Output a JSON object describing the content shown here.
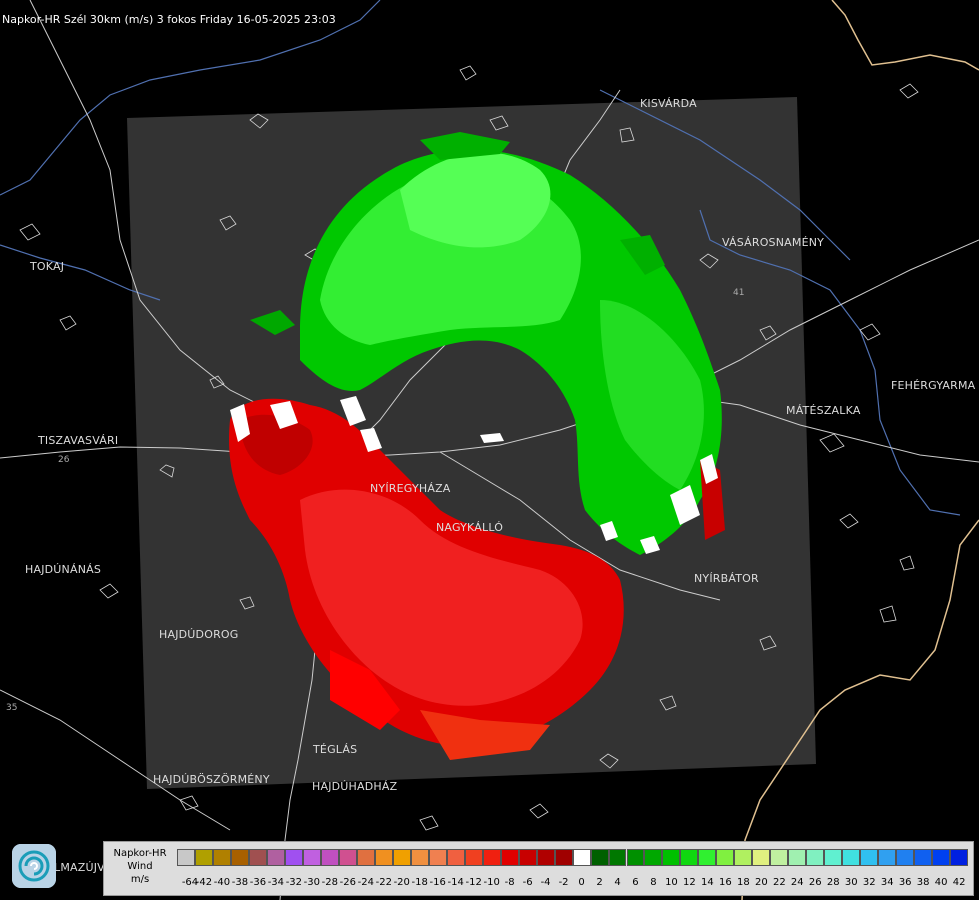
{
  "title": "Napkor-HR Szél 30km (m/s) 3 fokos Friday 16-05-2025 23:03",
  "cities": [
    {
      "id": "kisvarda",
      "name": "KISVÁRDA"
    },
    {
      "id": "tokaj",
      "name": "TOKAJ"
    },
    {
      "id": "vasarosnameny",
      "name": "VÁSÁROSNAMÉNY"
    },
    {
      "id": "fehergyarmat",
      "name": "FEHÉRGYARMA"
    },
    {
      "id": "mateszalka",
      "name": "MÁTÉSZALKA"
    },
    {
      "id": "tiszavasvari",
      "name": "TISZAVASVÁRI"
    },
    {
      "id": "nyiregyhaza",
      "name": "NYÍREGYHÁZA"
    },
    {
      "id": "nagykallo",
      "name": "NAGYKÁLLÓ"
    },
    {
      "id": "nyirbator",
      "name": "NYÍRBÁTOR"
    },
    {
      "id": "hajdunanas",
      "name": "HAJDÚNÁNÁS"
    },
    {
      "id": "hajdudorog",
      "name": "HAJDÚDOROG"
    },
    {
      "id": "teglas",
      "name": "TÉGLÁS"
    },
    {
      "id": "hajduboszormeny",
      "name": "HAJDÚBÖSZÖRMÉNY"
    },
    {
      "id": "hajduhadhaz",
      "name": "HAJDÚHADHÁZ"
    },
    {
      "id": "hajdusamson",
      "name": "LMAZÚJVÁR"
    }
  ],
  "roads": [
    "26",
    "41",
    "35"
  ],
  "legend": {
    "label_lines": [
      "Napkor-HR",
      "Wind",
      "m/s"
    ],
    "bins": [
      {
        "label": "-64",
        "color": "#c8c8c8"
      },
      {
        "label": "-42",
        "color": "#b0a000"
      },
      {
        "label": "-40",
        "color": "#b08000"
      },
      {
        "label": "-38",
        "color": "#a86000"
      },
      {
        "label": "-36",
        "color": "#a05050"
      },
      {
        "label": "-34",
        "color": "#b060a0"
      },
      {
        "label": "-32",
        "color": "#a050f0"
      },
      {
        "label": "-30",
        "color": "#c060e0"
      },
      {
        "label": "-28",
        "color": "#c050c0"
      },
      {
        "label": "-26",
        "color": "#d05090"
      },
      {
        "label": "-24",
        "color": "#e07040"
      },
      {
        "label": "-22",
        "color": "#f09020"
      },
      {
        "label": "-20",
        "color": "#f0a000"
      },
      {
        "label": "-18",
        "color": "#f09040"
      },
      {
        "label": "-16",
        "color": "#f08050"
      },
      {
        "label": "-14",
        "color": "#f06040"
      },
      {
        "label": "-12",
        "color": "#f04020"
      },
      {
        "label": "-10",
        "color": "#f02010"
      },
      {
        "label": "-8",
        "color": "#e00000"
      },
      {
        "label": "-6",
        "color": "#c80000"
      },
      {
        "label": "-4",
        "color": "#b00000"
      },
      {
        "label": "-2",
        "color": "#a00000"
      },
      {
        "label": "0",
        "color": "#ffffff"
      },
      {
        "label": "2",
        "color": "#006000"
      },
      {
        "label": "4",
        "color": "#007800"
      },
      {
        "label": "6",
        "color": "#009000"
      },
      {
        "label": "8",
        "color": "#00a800"
      },
      {
        "label": "10",
        "color": "#00c000"
      },
      {
        "label": "12",
        "color": "#10d810"
      },
      {
        "label": "14",
        "color": "#30f030"
      },
      {
        "label": "16",
        "color": "#80f040"
      },
      {
        "label": "18",
        "color": "#b0f060"
      },
      {
        "label": "20",
        "color": "#e0f080"
      },
      {
        "label": "22",
        "color": "#c0f0a0"
      },
      {
        "label": "24",
        "color": "#a0f0b0"
      },
      {
        "label": "26",
        "color": "#80f0c0"
      },
      {
        "label": "28",
        "color": "#60f0d0"
      },
      {
        "label": "30",
        "color": "#40e0e0"
      },
      {
        "label": "32",
        "color": "#30c0f0"
      },
      {
        "label": "34",
        "color": "#30a0f0"
      },
      {
        "label": "36",
        "color": "#2080f0"
      },
      {
        "label": "38",
        "color": "#1060f0"
      },
      {
        "label": "40",
        "color": "#0040f0"
      },
      {
        "label": "42",
        "color": "#0020e0"
      }
    ]
  },
  "colors": {
    "background": "#000000",
    "radar_area": "#333333",
    "outward_velocity": "#00e000",
    "inward_velocity": "#e00000",
    "border": "#e0c090",
    "river": "#5070b0",
    "road": "#cccccc"
  }
}
